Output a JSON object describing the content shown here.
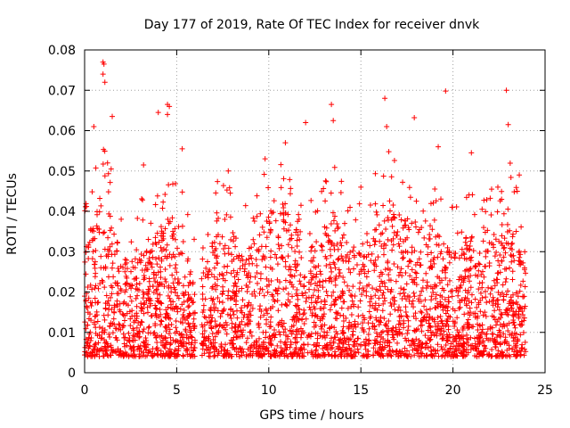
{
  "chart_data": {
    "type": "scatter",
    "title": "Day 177 of 2019, Rate Of TEC Index for receiver dnvk",
    "xlabel": "GPS time / hours",
    "ylabel": "ROTI / TECUs",
    "xlim": [
      0,
      25
    ],
    "ylim": [
      0,
      0.08
    ],
    "xticks": [
      0,
      5,
      10,
      15,
      20,
      25
    ],
    "xtick_labels": [
      "0",
      "5",
      "10",
      "15",
      "20",
      "25"
    ],
    "yticks": [
      0,
      0.01,
      0.02,
      0.03,
      0.04,
      0.05,
      0.06,
      0.07,
      0.08
    ],
    "ytick_labels": [
      "0",
      "0.01",
      "0.02",
      "0.03",
      "0.04",
      "0.05",
      "0.06",
      "0.07",
      "0.08"
    ],
    "grid": true,
    "marker": "+",
    "color": "#ff0000",
    "series": [
      {
        "name": "ROTI",
        "description_of_bulk": "dense scatter of ~thousands of points spanning 0–24 h, mostly between 0.005 and 0.035",
        "notable_points": [
          {
            "x": 1.0,
            "y": 0.077
          },
          {
            "x": 1.05,
            "y": 0.0765
          },
          {
            "x": 1.0,
            "y": 0.074
          },
          {
            "x": 1.1,
            "y": 0.072
          },
          {
            "x": 1.5,
            "y": 0.0635
          },
          {
            "x": 0.5,
            "y": 0.061
          },
          {
            "x": 4.5,
            "y": 0.0665
          },
          {
            "x": 4.6,
            "y": 0.066
          },
          {
            "x": 4.5,
            "y": 0.064
          },
          {
            "x": 4.0,
            "y": 0.0645
          },
          {
            "x": 13.4,
            "y": 0.0665
          },
          {
            "x": 13.5,
            "y": 0.0625
          },
          {
            "x": 16.3,
            "y": 0.068
          },
          {
            "x": 16.4,
            "y": 0.061
          },
          {
            "x": 17.9,
            "y": 0.0632
          },
          {
            "x": 19.6,
            "y": 0.0698
          },
          {
            "x": 22.9,
            "y": 0.07
          },
          {
            "x": 23.0,
            "y": 0.0615
          },
          {
            "x": 12.0,
            "y": 0.062
          },
          {
            "x": 10.9,
            "y": 0.057
          },
          {
            "x": 19.2,
            "y": 0.056
          },
          {
            "x": 21.0,
            "y": 0.0545
          },
          {
            "x": 5.3,
            "y": 0.0555
          },
          {
            "x": 3.2,
            "y": 0.0515
          },
          {
            "x": 7.8,
            "y": 0.05
          },
          {
            "x": 9.8,
            "y": 0.053
          },
          {
            "x": 15.0,
            "y": 0.046
          },
          {
            "x": 23.6,
            "y": 0.049
          }
        ]
      }
    ]
  }
}
